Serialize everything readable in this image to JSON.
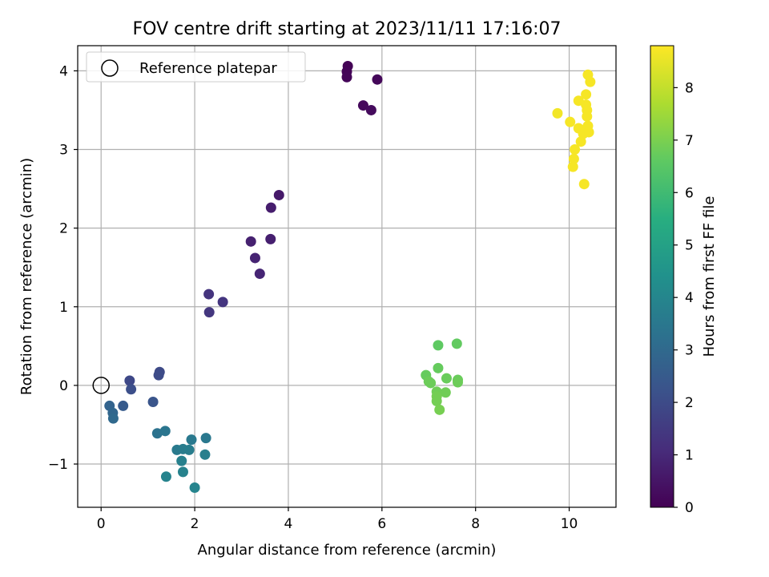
{
  "chart_data": {
    "type": "scatter",
    "title": "FOV centre drift starting at 2023/11/11 17:16:07",
    "xlabel": "Angular distance from reference (arcmin)",
    "ylabel": "Rotation from reference (arcmin)",
    "xlim": [
      -0.5,
      11.0
    ],
    "ylim": [
      -1.55,
      4.32
    ],
    "xticks": [
      0,
      2,
      4,
      6,
      8,
      10
    ],
    "yticks": [
      -1,
      0,
      1,
      2,
      3,
      4
    ],
    "grid": true,
    "legend": {
      "placement": "top-left",
      "entries": [
        "Reference platepar"
      ]
    },
    "reference_point": {
      "x": 0,
      "y": 0
    },
    "colorbar": {
      "label": "Hours from first FF file",
      "range": [
        0,
        8.8
      ],
      "ticks": [
        0,
        1,
        2,
        3,
        4,
        5,
        6,
        7,
        8
      ],
      "colormap": "viridis"
    },
    "points": [
      {
        "x": 5.27,
        "y": 4.06,
        "c": 0.05
      },
      {
        "x": 5.25,
        "y": 3.99,
        "c": 0.08
      },
      {
        "x": 5.25,
        "y": 3.92,
        "c": 0.1
      },
      {
        "x": 5.9,
        "y": 3.89,
        "c": 0.15
      },
      {
        "x": 5.6,
        "y": 3.56,
        "c": 0.2
      },
      {
        "x": 5.77,
        "y": 3.5,
        "c": 0.25
      },
      {
        "x": 3.8,
        "y": 2.42,
        "c": 0.6
      },
      {
        "x": 3.63,
        "y": 2.26,
        "c": 0.7
      },
      {
        "x": 3.62,
        "y": 1.86,
        "c": 0.75
      },
      {
        "x": 3.2,
        "y": 1.83,
        "c": 0.8
      },
      {
        "x": 3.29,
        "y": 1.62,
        "c": 0.85
      },
      {
        "x": 3.39,
        "y": 1.42,
        "c": 0.9
      },
      {
        "x": 2.3,
        "y": 1.16,
        "c": 1.3
      },
      {
        "x": 2.6,
        "y": 1.06,
        "c": 1.35
      },
      {
        "x": 2.31,
        "y": 0.93,
        "c": 1.4
      },
      {
        "x": 0.61,
        "y": 0.06,
        "c": 1.9
      },
      {
        "x": 1.25,
        "y": 0.17,
        "c": 1.95
      },
      {
        "x": 1.23,
        "y": 0.13,
        "c": 2.0
      },
      {
        "x": 0.64,
        "y": -0.05,
        "c": 2.1
      },
      {
        "x": 1.11,
        "y": -0.21,
        "c": 2.3
      },
      {
        "x": 0.47,
        "y": -0.26,
        "c": 2.5
      },
      {
        "x": 0.18,
        "y": -0.26,
        "c": 2.8
      },
      {
        "x": 0.25,
        "y": -0.35,
        "c": 2.9
      },
      {
        "x": 0.26,
        "y": -0.42,
        "c": 3.0
      },
      {
        "x": 1.2,
        "y": -0.61,
        "c": 3.3
      },
      {
        "x": 1.37,
        "y": -0.58,
        "c": 3.4
      },
      {
        "x": 2.24,
        "y": -0.67,
        "c": 3.5
      },
      {
        "x": 1.93,
        "y": -0.69,
        "c": 3.55
      },
      {
        "x": 1.62,
        "y": -0.82,
        "c": 3.6
      },
      {
        "x": 1.75,
        "y": -0.81,
        "c": 3.65
      },
      {
        "x": 1.88,
        "y": -0.82,
        "c": 3.7
      },
      {
        "x": 2.22,
        "y": -0.88,
        "c": 3.75
      },
      {
        "x": 1.72,
        "y": -0.96,
        "c": 3.8
      },
      {
        "x": 1.75,
        "y": -1.1,
        "c": 3.85
      },
      {
        "x": 1.39,
        "y": -1.16,
        "c": 3.9
      },
      {
        "x": 2.0,
        "y": -1.3,
        "c": 3.95
      },
      {
        "x": 7.2,
        "y": 0.51,
        "c": 6.6
      },
      {
        "x": 7.6,
        "y": 0.53,
        "c": 6.65
      },
      {
        "x": 7.2,
        "y": 0.22,
        "c": 6.7
      },
      {
        "x": 6.94,
        "y": 0.13,
        "c": 6.7
      },
      {
        "x": 7.38,
        "y": 0.09,
        "c": 6.75
      },
      {
        "x": 7.62,
        "y": 0.07,
        "c": 6.75
      },
      {
        "x": 7.0,
        "y": 0.05,
        "c": 6.8
      },
      {
        "x": 7.04,
        "y": 0.03,
        "c": 6.8
      },
      {
        "x": 7.62,
        "y": 0.04,
        "c": 6.8
      },
      {
        "x": 7.17,
        "y": -0.08,
        "c": 6.85
      },
      {
        "x": 7.36,
        "y": -0.09,
        "c": 6.85
      },
      {
        "x": 7.17,
        "y": -0.14,
        "c": 6.9
      },
      {
        "x": 7.17,
        "y": -0.2,
        "c": 6.9
      },
      {
        "x": 7.23,
        "y": -0.31,
        "c": 6.95
      },
      {
        "x": 10.4,
        "y": 3.95,
        "c": 8.7
      },
      {
        "x": 10.45,
        "y": 3.86,
        "c": 8.7
      },
      {
        "x": 10.36,
        "y": 3.7,
        "c": 8.7
      },
      {
        "x": 10.2,
        "y": 3.62,
        "c": 8.7
      },
      {
        "x": 10.36,
        "y": 3.57,
        "c": 8.7
      },
      {
        "x": 10.38,
        "y": 3.5,
        "c": 8.7
      },
      {
        "x": 9.75,
        "y": 3.46,
        "c": 8.65
      },
      {
        "x": 10.38,
        "y": 3.42,
        "c": 8.7
      },
      {
        "x": 10.02,
        "y": 3.35,
        "c": 8.7
      },
      {
        "x": 10.4,
        "y": 3.3,
        "c": 8.7
      },
      {
        "x": 10.2,
        "y": 3.27,
        "c": 8.7
      },
      {
        "x": 10.36,
        "y": 3.25,
        "c": 8.7
      },
      {
        "x": 10.42,
        "y": 3.22,
        "c": 8.7
      },
      {
        "x": 10.3,
        "y": 3.2,
        "c": 8.7
      },
      {
        "x": 10.25,
        "y": 3.1,
        "c": 8.7
      },
      {
        "x": 10.12,
        "y": 3.0,
        "c": 8.7
      },
      {
        "x": 10.1,
        "y": 2.88,
        "c": 8.7
      },
      {
        "x": 10.08,
        "y": 2.78,
        "c": 8.7
      },
      {
        "x": 10.32,
        "y": 2.56,
        "c": 8.7
      }
    ]
  }
}
